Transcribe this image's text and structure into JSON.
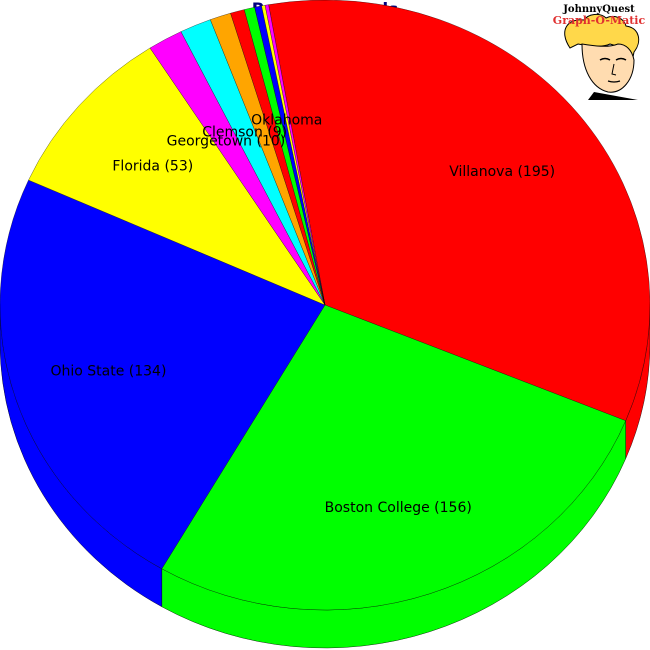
{
  "chart_data": {
    "type": "pie",
    "title": "Regional Finals",
    "slices": [
      {
        "label": "Villanova (195)",
        "value": 195,
        "color": "#ff0000"
      },
      {
        "label": "Boston College (156)",
        "value": 156,
        "color": "#00ff00"
      },
      {
        "label": "Ohio State (134)",
        "value": 134,
        "color": "#0000ff"
      },
      {
        "label": "Florida (53)",
        "value": 53,
        "color": "#ffff00"
      },
      {
        "label": "Georgetown (10)",
        "value": 10,
        "color": "#ff00ff"
      },
      {
        "label": "Clemson (9)",
        "value": 9,
        "color": "#00ffff"
      },
      {
        "label": "",
        "value": 6,
        "color": "#ffa500"
      },
      {
        "label": "",
        "value": 4,
        "color": "#ff0000"
      },
      {
        "label": "",
        "value": 3,
        "color": "#00ff00"
      },
      {
        "label": "",
        "value": 2,
        "color": "#0000ff"
      },
      {
        "label": "Oklahoma",
        "value": 1,
        "color": "#ffff00"
      },
      {
        "label": "",
        "value": 1,
        "color": "#ff00ff"
      }
    ]
  },
  "logo": {
    "line1": "JohnnyQuest",
    "line2": "Graph-O-Matic"
  }
}
